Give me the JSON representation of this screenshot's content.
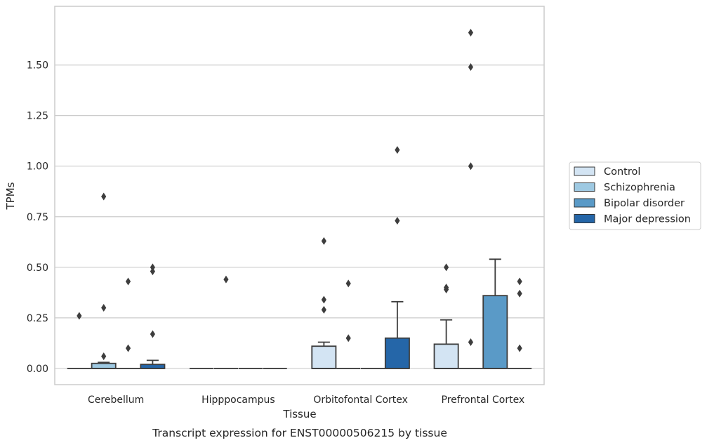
{
  "chart_data": {
    "type": "box",
    "xlabel": "Tissue",
    "ylabel": "TPMs",
    "caption": "Transcript expression for ENST00000506215 by tissue",
    "ylim": [
      -0.08,
      1.79
    ],
    "yticks": [
      "0.00",
      "0.25",
      "0.50",
      "0.75",
      "1.00",
      "1.25",
      "1.50"
    ],
    "ytick_values": [
      0,
      0.25,
      0.5,
      0.75,
      1.0,
      1.25,
      1.5
    ],
    "grid": true,
    "legend_position": "right",
    "categories": [
      "Cerebellum",
      "Hipppocampus",
      "Orbitofontal Cortex",
      "Prefrontal Cortex"
    ],
    "series": [
      {
        "name": "Control",
        "color": "#d3e4f3",
        "boxes": [
          {
            "q1": 0,
            "median": 0,
            "q3": 0,
            "whisker_low": 0,
            "whisker_high": 0,
            "outliers": [
              0.26
            ]
          },
          {
            "q1": 0,
            "median": 0,
            "q3": 0,
            "whisker_low": 0,
            "whisker_high": 0,
            "outliers": []
          },
          {
            "q1": 0,
            "median": 0,
            "q3": 0.11,
            "whisker_low": 0,
            "whisker_high": 0.13,
            "outliers": [
              0.29,
              0.34,
              0.63
            ]
          },
          {
            "q1": 0,
            "median": 0,
            "q3": 0.12,
            "whisker_low": 0,
            "whisker_high": 0.24,
            "outliers": [
              0.39,
              0.4,
              0.5
            ]
          }
        ]
      },
      {
        "name": "Schizophrenia",
        "color": "#9ec9e2",
        "boxes": [
          {
            "q1": 0,
            "median": 0,
            "q3": 0.025,
            "whisker_low": 0,
            "whisker_high": 0.03,
            "outliers": [
              0.06,
              0.3,
              0.85
            ]
          },
          {
            "q1": 0,
            "median": 0,
            "q3": 0,
            "whisker_low": 0,
            "whisker_high": 0,
            "outliers": [
              0.44
            ]
          },
          {
            "q1": 0,
            "median": 0,
            "q3": 0,
            "whisker_low": 0,
            "whisker_high": 0,
            "outliers": [
              0.15,
              0.42
            ]
          },
          {
            "q1": 0,
            "median": 0,
            "q3": 0,
            "whisker_low": 0,
            "whisker_high": 0,
            "outliers": [
              0.13,
              1.0,
              1.49,
              1.66
            ]
          }
        ]
      },
      {
        "name": "Bipolar disorder",
        "color": "#5a9ac7",
        "boxes": [
          {
            "q1": 0,
            "median": 0,
            "q3": 0,
            "whisker_low": 0,
            "whisker_high": 0,
            "outliers": [
              0.1,
              0.43
            ]
          },
          {
            "q1": 0,
            "median": 0,
            "q3": 0,
            "whisker_low": 0,
            "whisker_high": 0,
            "outliers": []
          },
          {
            "q1": 0,
            "median": 0,
            "q3": 0,
            "whisker_low": 0,
            "whisker_high": 0,
            "outliers": []
          },
          {
            "q1": 0,
            "median": 0,
            "q3": 0.36,
            "whisker_low": 0,
            "whisker_high": 0.54,
            "outliers": []
          }
        ]
      },
      {
        "name": "Major depression",
        "color": "#2566a8",
        "boxes": [
          {
            "q1": 0,
            "median": 0,
            "q3": 0.02,
            "whisker_low": 0,
            "whisker_high": 0.04,
            "outliers": [
              0.17,
              0.48,
              0.5
            ]
          },
          {
            "q1": 0,
            "median": 0,
            "q3": 0,
            "whisker_low": 0,
            "whisker_high": 0,
            "outliers": []
          },
          {
            "q1": 0,
            "median": 0,
            "q3": 0.15,
            "whisker_low": 0,
            "whisker_high": 0.33,
            "outliers": [
              0.73,
              1.08
            ]
          },
          {
            "q1": 0,
            "median": 0,
            "q3": 0,
            "whisker_low": 0,
            "whisker_high": 0,
            "outliers": [
              0.1,
              0.37,
              0.43
            ]
          }
        ]
      }
    ]
  }
}
